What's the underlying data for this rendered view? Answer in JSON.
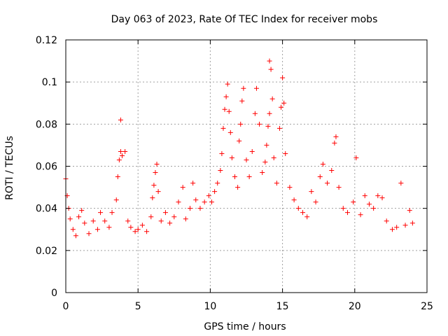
{
  "chart_data": {
    "type": "scatter",
    "title": "Day 063 of 2023, Rate Of TEC Index for receiver mobs",
    "xlabel": "GPS time / hours",
    "ylabel": "ROTI / TECUs",
    "xlim": [
      0,
      25
    ],
    "ylim": [
      0,
      0.12
    ],
    "xticks": [
      0,
      5,
      10,
      15,
      20,
      25
    ],
    "xtick_labels": [
      "0",
      "5",
      "10",
      "15",
      "20",
      "25"
    ],
    "yticks": [
      0,
      0.02,
      0.04,
      0.06,
      0.08,
      0.1,
      0.12
    ],
    "ytick_labels": [
      "0",
      "0.02",
      "0.04",
      "0.06",
      "0.08",
      "0.1",
      "0.12"
    ],
    "grid": true,
    "marker": "+",
    "color": "#ff0000",
    "series": [
      {
        "points": [
          [
            0.0,
            0.054
          ],
          [
            0.1,
            0.046
          ],
          [
            0.2,
            0.04
          ],
          [
            0.3,
            0.035
          ],
          [
            0.5,
            0.03
          ],
          [
            0.7,
            0.027
          ],
          [
            0.9,
            0.036
          ],
          [
            1.1,
            0.039
          ],
          [
            1.3,
            0.033
          ],
          [
            1.6,
            0.028
          ],
          [
            1.9,
            0.034
          ],
          [
            2.2,
            0.03
          ],
          [
            2.4,
            0.038
          ],
          [
            2.7,
            0.034
          ],
          [
            3.0,
            0.031
          ],
          [
            3.2,
            0.038
          ],
          [
            3.5,
            0.044
          ],
          [
            3.6,
            0.055
          ],
          [
            3.7,
            0.063
          ],
          [
            3.8,
            0.067
          ],
          [
            3.8,
            0.082
          ],
          [
            3.9,
            0.065
          ],
          [
            4.1,
            0.067
          ],
          [
            4.3,
            0.034
          ],
          [
            4.5,
            0.031
          ],
          [
            4.8,
            0.029
          ],
          [
            5.0,
            0.03
          ],
          [
            5.3,
            0.032
          ],
          [
            5.6,
            0.029
          ],
          [
            5.9,
            0.036
          ],
          [
            6.0,
            0.045
          ],
          [
            6.1,
            0.051
          ],
          [
            6.2,
            0.057
          ],
          [
            6.3,
            0.061
          ],
          [
            6.4,
            0.048
          ],
          [
            6.6,
            0.034
          ],
          [
            6.9,
            0.038
          ],
          [
            7.2,
            0.033
          ],
          [
            7.5,
            0.036
          ],
          [
            7.8,
            0.043
          ],
          [
            8.1,
            0.05
          ],
          [
            8.3,
            0.035
          ],
          [
            8.6,
            0.04
          ],
          [
            8.8,
            0.052
          ],
          [
            9.0,
            0.044
          ],
          [
            9.3,
            0.04
          ],
          [
            9.6,
            0.043
          ],
          [
            9.9,
            0.046
          ],
          [
            10.1,
            0.043
          ],
          [
            10.3,
            0.048
          ],
          [
            10.5,
            0.052
          ],
          [
            10.7,
            0.058
          ],
          [
            10.8,
            0.066
          ],
          [
            10.9,
            0.078
          ],
          [
            11.0,
            0.087
          ],
          [
            11.1,
            0.093
          ],
          [
            11.2,
            0.099
          ],
          [
            11.3,
            0.086
          ],
          [
            11.4,
            0.076
          ],
          [
            11.5,
            0.064
          ],
          [
            11.7,
            0.055
          ],
          [
            11.9,
            0.05
          ],
          [
            12.0,
            0.072
          ],
          [
            12.1,
            0.08
          ],
          [
            12.2,
            0.091
          ],
          [
            12.3,
            0.097
          ],
          [
            12.5,
            0.063
          ],
          [
            12.7,
            0.055
          ],
          [
            12.9,
            0.067
          ],
          [
            13.1,
            0.085
          ],
          [
            13.2,
            0.097
          ],
          [
            13.4,
            0.08
          ],
          [
            13.6,
            0.057
          ],
          [
            13.8,
            0.062
          ],
          [
            13.9,
            0.07
          ],
          [
            14.0,
            0.079
          ],
          [
            14.1,
            0.085
          ],
          [
            14.1,
            0.11
          ],
          [
            14.2,
            0.106
          ],
          [
            14.3,
            0.092
          ],
          [
            14.4,
            0.064
          ],
          [
            14.6,
            0.052
          ],
          [
            14.8,
            0.078
          ],
          [
            14.9,
            0.088
          ],
          [
            15.0,
            0.102
          ],
          [
            15.1,
            0.09
          ],
          [
            15.2,
            0.066
          ],
          [
            15.5,
            0.05
          ],
          [
            15.8,
            0.044
          ],
          [
            16.1,
            0.04
          ],
          [
            16.4,
            0.038
          ],
          [
            16.7,
            0.036
          ],
          [
            17.0,
            0.048
          ],
          [
            17.3,
            0.043
          ],
          [
            17.6,
            0.055
          ],
          [
            17.8,
            0.061
          ],
          [
            18.1,
            0.052
          ],
          [
            18.4,
            0.058
          ],
          [
            18.6,
            0.071
          ],
          [
            18.7,
            0.074
          ],
          [
            18.9,
            0.05
          ],
          [
            19.2,
            0.04
          ],
          [
            19.5,
            0.038
          ],
          [
            19.9,
            0.043
          ],
          [
            20.1,
            0.064
          ],
          [
            20.4,
            0.037
          ],
          [
            20.7,
            0.046
          ],
          [
            21.0,
            0.042
          ],
          [
            21.3,
            0.04
          ],
          [
            21.6,
            0.046
          ],
          [
            21.9,
            0.045
          ],
          [
            22.2,
            0.034
          ],
          [
            22.6,
            0.03
          ],
          [
            22.9,
            0.031
          ],
          [
            23.2,
            0.052
          ],
          [
            23.5,
            0.032
          ],
          [
            23.8,
            0.039
          ],
          [
            24.0,
            0.033
          ]
        ]
      }
    ]
  }
}
